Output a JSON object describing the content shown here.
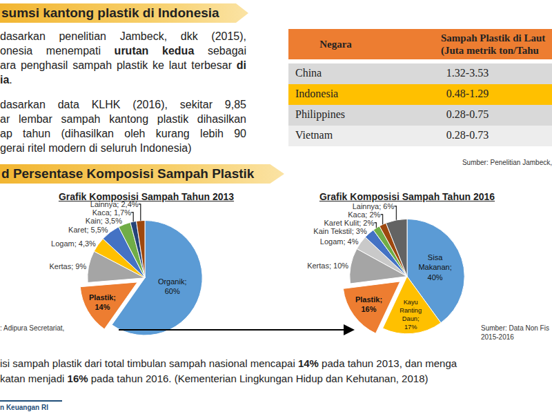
{
  "header": {
    "title": "sumsi kantong plastik di Indonesia"
  },
  "paragraph_1": [
    [
      {
        "text": "dasarkan penelitian Jambeck, dkk (2015),"
      }
    ],
    [
      {
        "text": "onesia menempati "
      },
      {
        "text": "urutan kedua",
        "bold": true
      },
      {
        "text": " sebagai"
      }
    ],
    [
      {
        "text": "ara penghasil sampah plastik ke laut terbesar "
      },
      {
        "text": "di",
        "bold": true
      }
    ],
    [
      {
        "text": "ia",
        "bold": true
      },
      {
        "text": "."
      }
    ]
  ],
  "paragraph_2": [
    [
      {
        "text": "dasarkan data KLHK (2016), sekitar 9,85"
      }
    ],
    [
      {
        "text": "ar lembar sampah kantong plastik dihasilkan"
      }
    ],
    [
      {
        "text": "ap tahun (dihasilkan oleh kurang lebih 90"
      }
    ],
    [
      {
        "text": "gerai ritel modern di seluruh Indonesia)"
      }
    ]
  ],
  "table": {
    "header": [
      [
        "Negara"
      ],
      [
        "Sampah Plastik di Laut",
        "(Juta metrik ton/Tahu"
      ]
    ],
    "rows": [
      [
        "China",
        "1.32-3.53"
      ],
      [
        "Indonesia",
        "0.48-1.29"
      ],
      [
        "Philippines",
        "0.28-0.75"
      ],
      [
        "Vietnam",
        "0.28-0.73"
      ]
    ],
    "source": "Sumber: Penelitian Jambeck,"
  },
  "section": {
    "title": "d Persentase Komposisi Sampah Plastik"
  },
  "chart_data": [
    {
      "type": "pie",
      "title": "Grafik Komposisi Sampah Tahun 2013",
      "categories": [
        "Organik",
        "Plastik",
        "Kertas",
        "Logam",
        "Karet",
        "Kain",
        "Kaca",
        "Lainnya"
      ],
      "values": [
        60,
        14,
        9,
        4.3,
        5.5,
        3.5,
        1.7,
        2.4
      ],
      "value_labels": [
        "Organik; 60%",
        "Plastik; 14%",
        "Kertas; 9%",
        "Logam; 4,3%",
        "Karet; 5,5%",
        "Kain; 3,5%",
        "Kaca; 1,7%",
        "Lainnya; 2,4%"
      ],
      "colors": [
        "#5b9bd5",
        "#ed7d31",
        "#a5a5a5",
        "#ffc000",
        "#4472c4",
        "#70ad47",
        "#264478",
        "#9e480e"
      ],
      "data_labels": true
    },
    {
      "type": "pie",
      "title": "Grafik Komposisi Sampah Tahun 2016",
      "categories": [
        "Sisa Makanan",
        "Kayu Ranting Daun",
        "Plastik",
        "Kertas",
        "Logam",
        "Kain Tekstil",
        "Karet Kulit",
        "Kaca",
        "Lainnya"
      ],
      "values": [
        40,
        17,
        16,
        10,
        4,
        3,
        2,
        2,
        6
      ],
      "value_labels": [
        "Sisa Makanan; 40%",
        "Kayu Ranting Daun; 17%",
        "Plastik; 16%",
        "Kertas; 10%",
        "Logam; 4%",
        "Kain Tekstil; 3%",
        "Karet Kulit; 2%",
        "Kaca; 2%",
        "Lainnya; 6%"
      ],
      "colors": [
        "#5b9bd5",
        "#ffc000",
        "#ed7d31",
        "#a5a5a5",
        "#c9c9c9",
        "#4472c4",
        "#70ad47",
        "#9e480e",
        "#636363"
      ],
      "data_labels": true
    }
  ],
  "sources": [
    [
      ": Adipura Secretariat,"
    ],
    [
      "Sumber: Data Non Fis",
      "2015-2016"
    ]
  ],
  "conclusion": [
    [
      {
        "text": "isi sampah plastik dari total timbulan sampah nasional mencapai "
      },
      {
        "text": "14%",
        "bold": true
      },
      {
        "text": " pada tahun 2013, dan menga"
      }
    ],
    [
      {
        "text": "katan menjadi "
      },
      {
        "text": "16%",
        "bold": true
      },
      {
        "text": " pada tahun 2016. (Kementerian Lingkungan Hidup dan Kehutanan, 2018)"
      }
    ]
  ],
  "footer": "n Keuangan RI"
}
